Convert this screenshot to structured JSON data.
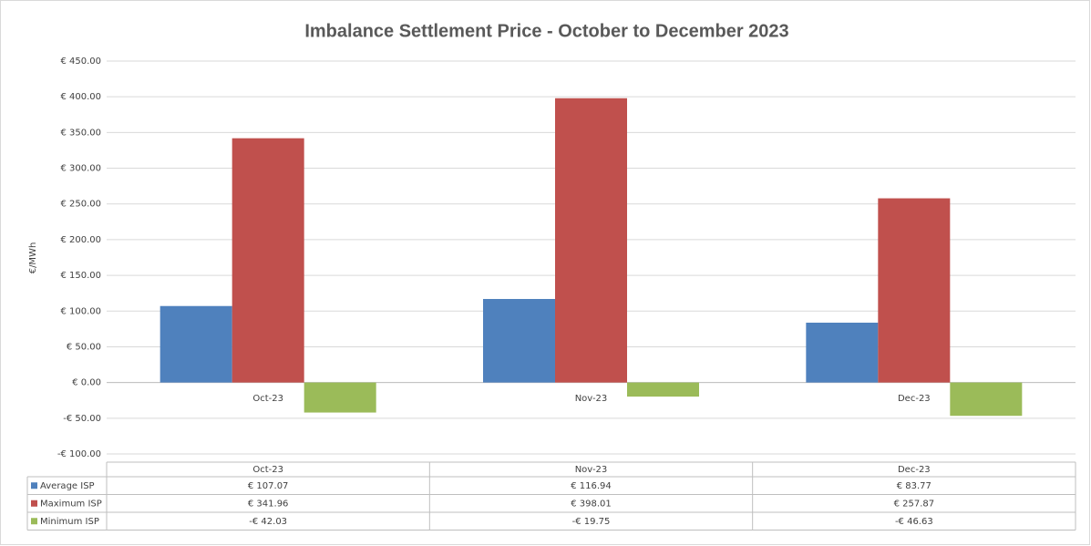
{
  "chart_data": {
    "type": "bar",
    "title": "Imbalance Settlement Price - October to December 2023",
    "ylabel": "€/MWh",
    "categories": [
      "Oct-23",
      "Nov-23",
      "Dec-23"
    ],
    "series": [
      {
        "name": "Average ISP",
        "color": "#4f81bd",
        "values": [
          107.07,
          116.94,
          83.77
        ],
        "value_labels": [
          "€ 107.07",
          "€ 116.94",
          "€ 83.77"
        ]
      },
      {
        "name": "Maximum ISP",
        "color": "#c0504d",
        "values": [
          341.96,
          398.01,
          257.87
        ],
        "value_labels": [
          "€ 341.96",
          "€ 398.01",
          "€ 257.87"
        ]
      },
      {
        "name": "Minimum ISP",
        "color": "#9bbb59",
        "values": [
          -42.03,
          -19.75,
          -46.63
        ],
        "value_labels": [
          "-€ 42.03",
          "-€ 19.75",
          "-€ 46.63"
        ]
      }
    ],
    "ylim": [
      -100,
      450
    ],
    "yticks": [
      {
        "value": -100,
        "label": "-€ 100.00"
      },
      {
        "value": -50,
        "label": "-€ 50.00"
      },
      {
        "value": 0,
        "label": "€ 0.00"
      },
      {
        "value": 50,
        "label": "€ 50.00"
      },
      {
        "value": 100,
        "label": "€ 100.00"
      },
      {
        "value": 150,
        "label": "€ 150.00"
      },
      {
        "value": 200,
        "label": "€ 200.00"
      },
      {
        "value": 250,
        "label": "€ 250.00"
      },
      {
        "value": 300,
        "label": "€ 300.00"
      },
      {
        "value": 350,
        "label": "€ 350.00"
      },
      {
        "value": 400,
        "label": "€ 400.00"
      },
      {
        "value": 450,
        "label": "€ 450.00"
      }
    ],
    "grid": true
  }
}
